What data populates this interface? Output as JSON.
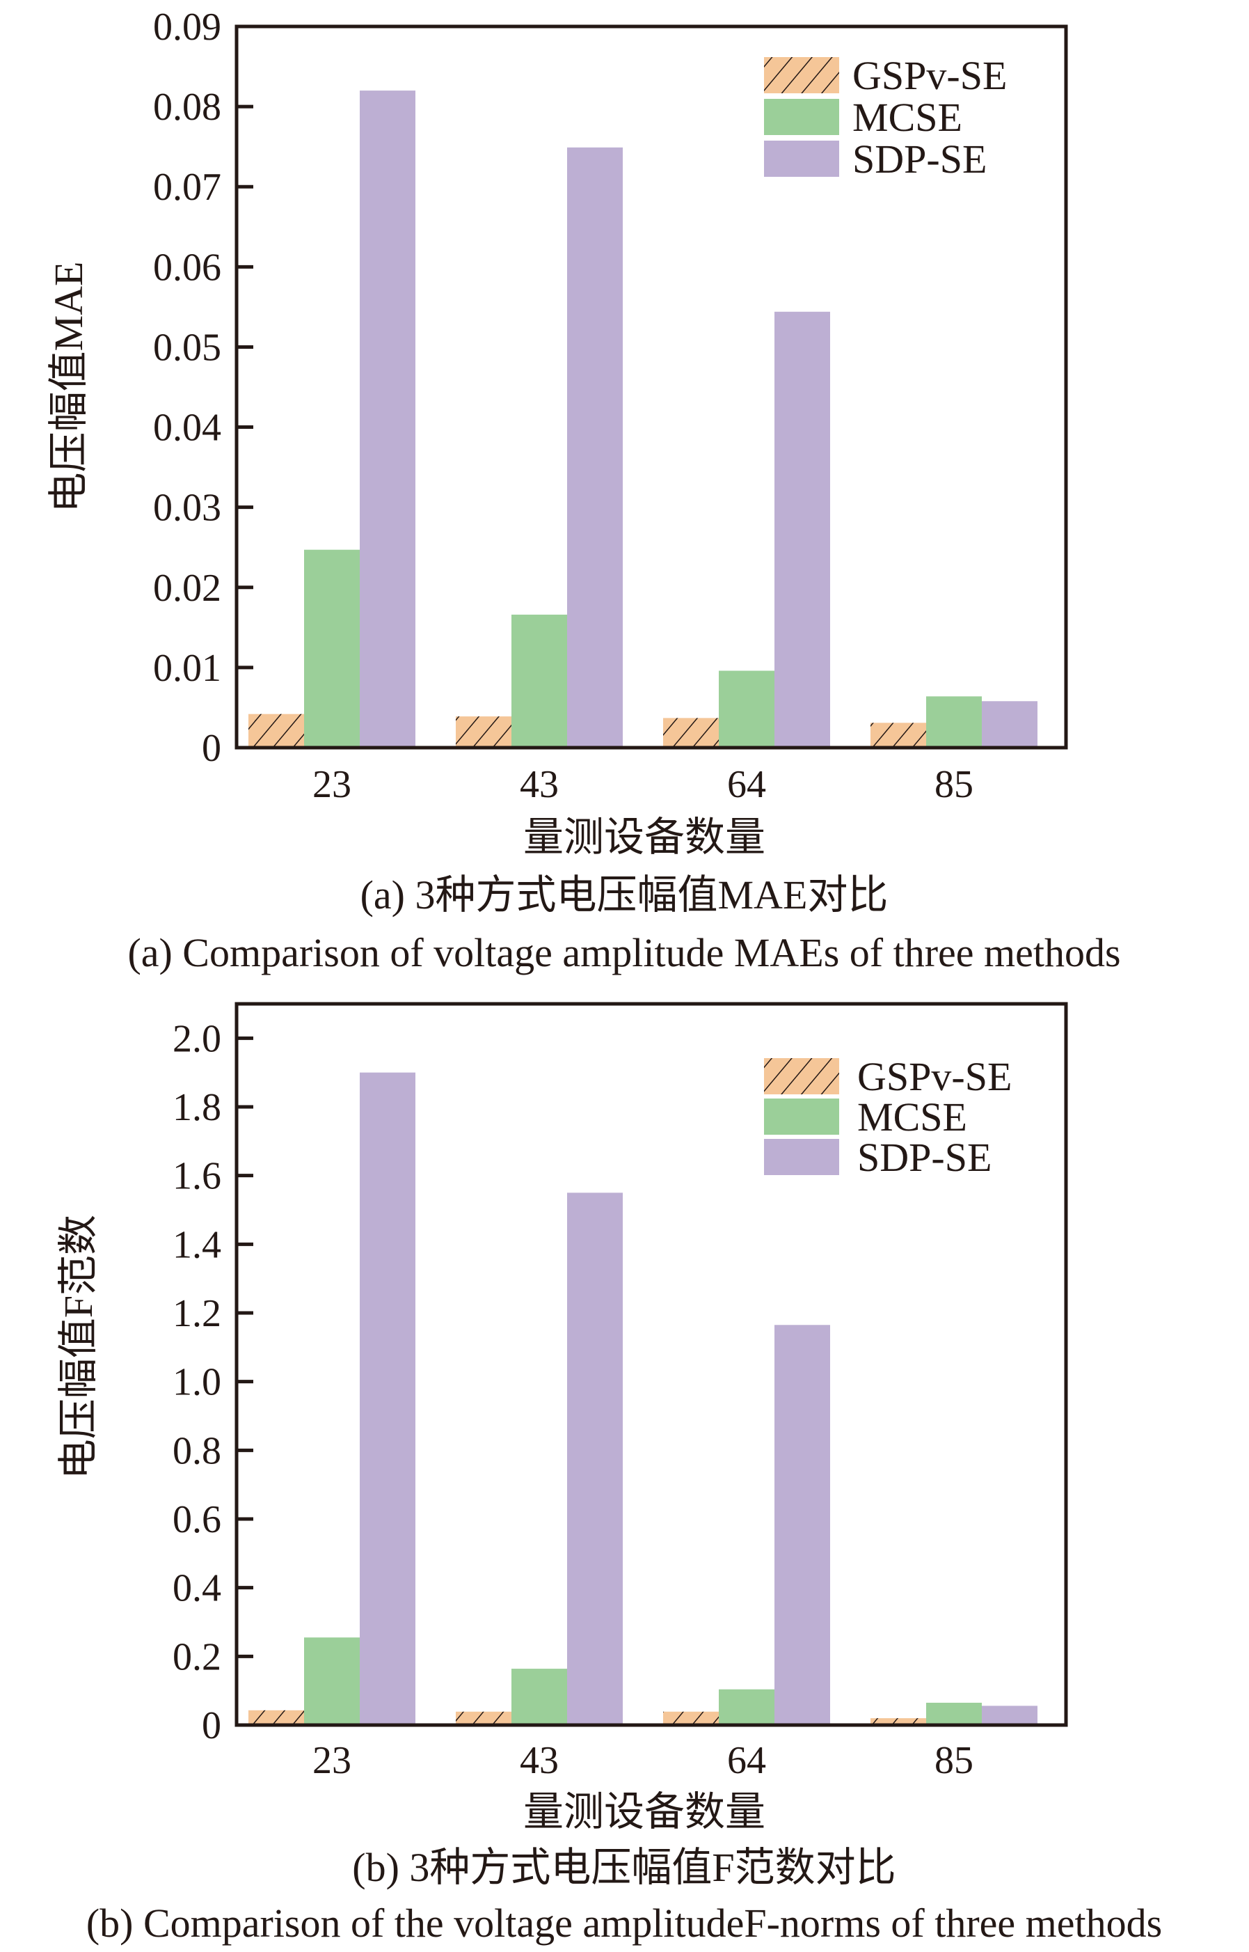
{
  "colors": {
    "GSPv-SE": "#f5c698",
    "MCSE": "#9bcf99",
    "SDP-SE": "#bdafd3",
    "axis": "#231815"
  },
  "chart_data": [
    {
      "type": "bar",
      "title": "",
      "categories": [
        "23",
        "43",
        "64",
        "85"
      ],
      "xlabel": "量测设备数量",
      "ylabel": "电压幅值MAE",
      "ylim": [
        0,
        0.09
      ],
      "yticks": [
        "0",
        "0.01",
        "0.02",
        "0.03",
        "0.04",
        "0.05",
        "0.06",
        "0.07",
        "0.08",
        "0.09"
      ],
      "ytick_values": [
        0,
        0.01,
        0.02,
        0.03,
        0.04,
        0.05,
        0.06,
        0.07,
        0.08,
        0.09
      ],
      "grid": false,
      "legend": "top-right",
      "series": [
        {
          "name": "GSPv-SE",
          "pattern": "hatch",
          "values": [
            0.0042,
            0.0039,
            0.0037,
            0.0031
          ]
        },
        {
          "name": "MCSE",
          "pattern": "solid",
          "values": [
            0.0247,
            0.0166,
            0.0096,
            0.0064
          ]
        },
        {
          "name": "SDP-SE",
          "pattern": "solid",
          "values": [
            0.082,
            0.0749,
            0.0544,
            0.0058
          ]
        }
      ],
      "caption_cn": "(a) 3种方式电压幅值MAE对比",
      "caption_en": "(a) Comparison of voltage amplitude MAEs of three methods"
    },
    {
      "type": "bar",
      "title": "",
      "categories": [
        "23",
        "43",
        "64",
        "85"
      ],
      "xlabel": "量测设备数量",
      "ylabel": "电压幅值F范数",
      "ylim": [
        0,
        2.1
      ],
      "yticks": [
        "0",
        "0.2",
        "0.4",
        "0.6",
        "0.8",
        "1.0",
        "1.2",
        "1.4",
        "1.6",
        "1.8",
        "2.0"
      ],
      "ytick_values": [
        0,
        0.2,
        0.4,
        0.6,
        0.8,
        1.0,
        1.2,
        1.4,
        1.6,
        1.8,
        2.0
      ],
      "grid": false,
      "legend": "top-right",
      "series": [
        {
          "name": "GSPv-SE",
          "pattern": "hatch",
          "values": [
            0.043,
            0.039,
            0.039,
            0.02
          ]
        },
        {
          "name": "MCSE",
          "pattern": "solid",
          "values": [
            0.255,
            0.164,
            0.104,
            0.065
          ]
        },
        {
          "name": "SDP-SE",
          "pattern": "solid",
          "values": [
            1.9,
            1.55,
            1.165,
            0.056
          ]
        }
      ],
      "caption_cn": "(b) 3种方式电压幅值F范数对比",
      "caption_en": "(b) Comparison of the voltage amplitudeF-norms of three methods"
    }
  ]
}
